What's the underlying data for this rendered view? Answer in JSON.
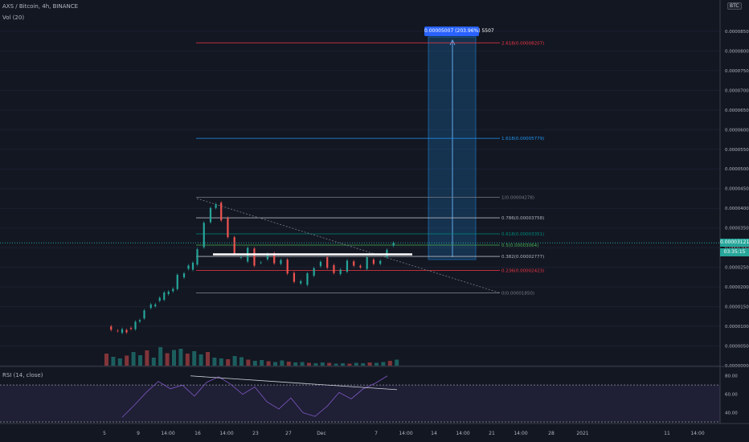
{
  "header": {
    "title": "AXS / Bitcoin, 4h, BINANCE",
    "volume_label": "Vol (20)",
    "rsi_label": "RSI (14, close)",
    "currency": "BTC"
  },
  "last_price": {
    "price": "0.00003121",
    "countdown": "03:35:15"
  },
  "measure_label": "0.00005007 (203.96%) 5507",
  "colors": {
    "background": "#131722",
    "up": "#26a69a",
    "down": "#ef5350",
    "rsi_line": "#7e57c2",
    "fib_top": "#f23645",
    "fib_1618": "#2196f3",
    "axis_text": "#b2b5be"
  },
  "chart_data": [
    {
      "type": "candlestick",
      "title": "AXS / Bitcoin, 4h, BINANCE",
      "y_axis": {
        "ticks": [
          "0.00000000",
          "0.00000500",
          "0.00001000",
          "0.00001500",
          "0.00002000",
          "0.00002500",
          "0.00003000",
          "0.00003500",
          "0.00004000",
          "0.00004500",
          "0.00005000",
          "0.00005500",
          "0.00006000",
          "0.00006500",
          "0.00007000",
          "0.00007500",
          "0.00008000",
          "0.00008500"
        ],
        "range": [
          0.0,
          9.05e-05
        ]
      },
      "x_axis": {
        "ticks": [
          "5",
          "9",
          "14:00",
          "16",
          "14:00",
          "23",
          "27",
          "Dec",
          "7",
          "14:00",
          "14",
          "14:00",
          "21",
          "14:00",
          "28",
          "2021",
          "11",
          "14:00"
        ]
      },
      "price_path": [
        [
          1,
          1e-05
        ],
        [
          2,
          8.5e-06
        ],
        [
          4,
          9e-06
        ],
        [
          6,
          1.15e-05
        ],
        [
          7,
          1.45e-05
        ],
        [
          9,
          1.7e-05
        ],
        [
          11,
          2e-05
        ],
        [
          12,
          2.3e-05
        ],
        [
          14,
          2.6e-05
        ],
        [
          15,
          3e-05
        ],
        [
          16,
          3.6e-05
        ],
        [
          16.8,
          3.95e-05
        ],
        [
          17.6,
          4.1e-05
        ],
        [
          18.6,
          3.75e-05
        ],
        [
          19.6,
          3.3e-05
        ],
        [
          20.6,
          2.8e-05
        ],
        [
          21.6,
          2.7e-05
        ],
        [
          22.6,
          3e-05
        ],
        [
          23.6,
          2.6e-05
        ],
        [
          24.6,
          2.65e-05
        ],
        [
          25.6,
          2.8e-05
        ],
        [
          26.6,
          2.55e-05
        ],
        [
          27.6,
          2.7e-05
        ],
        [
          28.6,
          2.4e-05
        ],
        [
          29.6,
          2.15e-05
        ],
        [
          30.6,
          2.1e-05
        ],
        [
          31.6,
          2.3e-05
        ],
        [
          32.6,
          2.5e-05
        ],
        [
          33.6,
          2.7e-05
        ],
        [
          34.6,
          2.5e-05
        ],
        [
          35.6,
          2.3e-05
        ],
        [
          36.6,
          2.4e-05
        ],
        [
          37.6,
          2.7e-05
        ],
        [
          38.6,
          2.6e-05
        ],
        [
          39.6,
          2.5e-05
        ],
        [
          40.6,
          2.7e-05
        ],
        [
          41.6,
          2.55e-05
        ],
        [
          42.6,
          2.7e-05
        ],
        [
          43.6,
          3e-05
        ],
        [
          44.6,
          3.121e-05
        ]
      ],
      "volume": [
        3.0,
        2.2,
        1.8,
        2.5,
        3.4,
        2.6,
        3.8,
        2.0,
        4.6,
        3.1,
        3.9,
        4.2,
        3.0,
        3.6,
        2.8,
        3.4,
        2.0,
        1.8,
        1.6,
        2.4,
        2.1,
        1.5,
        1.2,
        1.4,
        1.1,
        0.9,
        1.3,
        1.0,
        0.8,
        0.9,
        0.7,
        0.6,
        0.8,
        0.7,
        0.5,
        0.6,
        0.5,
        0.7,
        0.6,
        0.8,
        0.7,
        0.9,
        1.2,
        1.5
      ]
    },
    {
      "type": "line",
      "title": "RSI (14, close)",
      "y_axis": {
        "ticks": [
          "80.00",
          "60.00",
          "40.00"
        ]
      },
      "rsi_path": [
        [
          0,
          35
        ],
        [
          2,
          48
        ],
        [
          4,
          62
        ],
        [
          6,
          74
        ],
        [
          8,
          66
        ],
        [
          10,
          70
        ],
        [
          12,
          58
        ],
        [
          14,
          73
        ],
        [
          16,
          79
        ],
        [
          18,
          71
        ],
        [
          20,
          60
        ],
        [
          22,
          68
        ],
        [
          24,
          52
        ],
        [
          26,
          44
        ],
        [
          28,
          56
        ],
        [
          30,
          40
        ],
        [
          32,
          36
        ],
        [
          34,
          47
        ],
        [
          36,
          62
        ],
        [
          38,
          55
        ],
        [
          40,
          66
        ],
        [
          42,
          72
        ],
        [
          44,
          80
        ]
      ]
    }
  ],
  "fib_levels": [
    {
      "label": "2.618(0.00008207)",
      "value": 8.207e-05,
      "color": "#f23645"
    },
    {
      "label": "1.618(0.00005779)",
      "value": 5.779e-05,
      "color": "#2196f3"
    },
    {
      "label": "1(0.00004278)",
      "value": 4.278e-05,
      "color": "#787b86"
    },
    {
      "label": "0.786(0.00003758)",
      "value": 3.758e-05,
      "color": "#b2b5be"
    },
    {
      "label": "0.618(0.00003351)",
      "value": 3.351e-05,
      "color": "#00897b"
    },
    {
      "label": "0.5(0.00003064)",
      "value": 3.064e-05,
      "color": "#4caf50"
    },
    {
      "label": "0.382(0.00002777)",
      "value": 2.777e-05,
      "color": "#b2b5be"
    },
    {
      "label": "0.236(0.00002423)",
      "value": 2.423e-05,
      "color": "#f23645"
    },
    {
      "label": "0(0.00001850)",
      "value": 1.85e-05,
      "color": "#787b86"
    }
  ]
}
